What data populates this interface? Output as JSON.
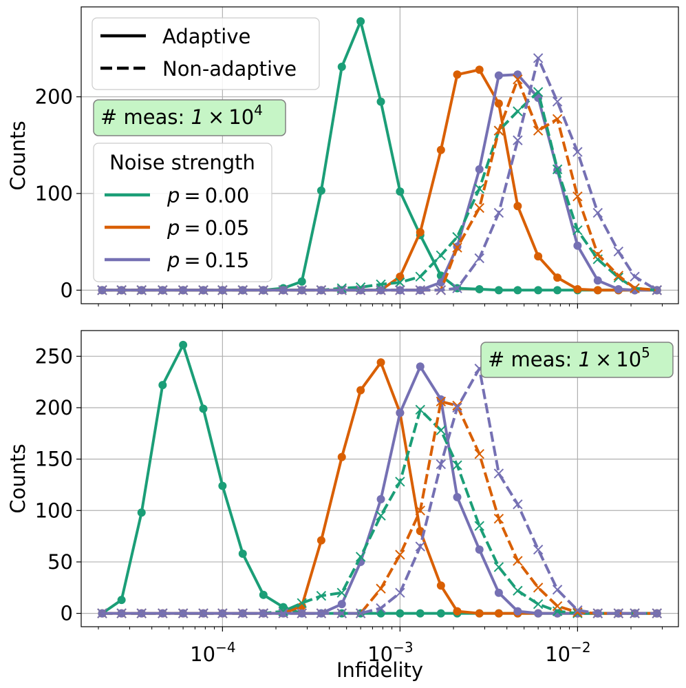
{
  "colors": {
    "p000": "#1b9e77",
    "p005": "#d95f02",
    "p015": "#7570b3",
    "grid": "#b0b0b0",
    "box_fill": "#c6f5c6"
  },
  "x_tick_labels": [
    {
      "base": "10",
      "exp": "−4"
    },
    {
      "base": "10",
      "exp": "−3"
    },
    {
      "base": "10",
      "exp": "−2"
    }
  ],
  "chart_data": [
    {
      "type": "line",
      "panel": "top",
      "xscale": "log",
      "xlim": [
        1.6e-05,
        0.037
      ],
      "ylim": [
        -14,
        293
      ],
      "ylabel": "Counts",
      "xlabel": "",
      "yticks": [
        0,
        100,
        200
      ],
      "annotation": {
        "prefix": "# meas: ",
        "mant": "1",
        "times": "×",
        "base": "10",
        "exp": "4"
      },
      "legend_style": {
        "title": "",
        "entries": [
          {
            "label": "Adaptive",
            "dash": "solid"
          },
          {
            "label": "Non-adaptive",
            "dash": "dashed"
          }
        ]
      },
      "legend_noise": {
        "title": "Noise strength",
        "entries": [
          {
            "label": "p = 0.00",
            "var": "p",
            "val": "0.00",
            "series": "p000"
          },
          {
            "label": "p = 0.05",
            "var": "p",
            "val": "0.05",
            "series": "p005"
          },
          {
            "label": "p = 0.15",
            "var": "p",
            "val": "0.15",
            "series": "p015"
          }
        ]
      },
      "x": [
        2.1e-05,
        2.7e-05,
        3.5e-05,
        4.6e-05,
        6e-05,
        7.8e-05,
        0.0001,
        0.00013,
        0.00017,
        0.00022,
        0.00028,
        0.00036,
        0.00047,
        0.0006,
        0.00078,
        0.001,
        0.0013,
        0.0017,
        0.0021,
        0.0028,
        0.0036,
        0.0046,
        0.006,
        0.0077,
        0.01,
        0.013,
        0.017,
        0.021,
        0.028
      ],
      "series": [
        {
          "name": "p = 0.00 Adaptive",
          "key": "p000",
          "style": "solid",
          "marker": "circle",
          "values": [
            0,
            0,
            0,
            0,
            0,
            0,
            0,
            0,
            0,
            2,
            9,
            103,
            231,
            278,
            195,
            102,
            57,
            15,
            2,
            1,
            0,
            0,
            0,
            0,
            0,
            0,
            0,
            0,
            0
          ]
        },
        {
          "name": "p = 0.05 Adaptive",
          "key": "p005",
          "style": "solid",
          "marker": "circle",
          "values": [
            0,
            0,
            0,
            0,
            0,
            0,
            0,
            0,
            0,
            0,
            0,
            0,
            0,
            0,
            0,
            14,
            60,
            145,
            223,
            228,
            193,
            87,
            35,
            13,
            1,
            0,
            0,
            0,
            0
          ]
        },
        {
          "name": "p = 0.15 Adaptive",
          "key": "p015",
          "style": "solid",
          "marker": "circle",
          "values": [
            0,
            0,
            0,
            0,
            0,
            0,
            0,
            0,
            0,
            0,
            0,
            0,
            0,
            0,
            0,
            0,
            0,
            8,
            45,
            125,
            222,
            223,
            199,
            124,
            46,
            10,
            1,
            0,
            0
          ]
        },
        {
          "name": "p = 0.00 Non-adaptive",
          "key": "p000",
          "style": "dashed",
          "marker": "x",
          "values": [
            0,
            0,
            0,
            0,
            0,
            0,
            0,
            0,
            0,
            0,
            0,
            0,
            2,
            3,
            6,
            8,
            14,
            36,
            55,
            105,
            165,
            185,
            205,
            125,
            62,
            32,
            13,
            2,
            0
          ]
        },
        {
          "name": "p = 0.05 Non-adaptive",
          "key": "p005",
          "style": "dashed",
          "marker": "x",
          "values": [
            0,
            0,
            0,
            0,
            0,
            0,
            0,
            0,
            0,
            0,
            0,
            0,
            0,
            0,
            0,
            0,
            0,
            0,
            44,
            85,
            165,
            218,
            165,
            177,
            97,
            37,
            15,
            2,
            0
          ]
        },
        {
          "name": "p = 0.15 Non-adaptive",
          "key": "p015",
          "style": "dashed",
          "marker": "x",
          "values": [
            0,
            0,
            0,
            0,
            0,
            0,
            0,
            0,
            0,
            0,
            0,
            0,
            0,
            0,
            0,
            0,
            0,
            0,
            2,
            33,
            80,
            155,
            240,
            195,
            143,
            80,
            40,
            14,
            0
          ]
        }
      ]
    },
    {
      "type": "line",
      "panel": "bottom",
      "xscale": "log",
      "xlim": [
        1.6e-05,
        0.037
      ],
      "ylim": [
        -13,
        275
      ],
      "ylabel": "Counts",
      "xlabel": "Infidelity",
      "yticks": [
        0,
        50,
        100,
        150,
        200,
        250
      ],
      "annotation": {
        "prefix": "# meas: ",
        "mant": "1",
        "times": "×",
        "base": "10",
        "exp": "5"
      },
      "x": [
        2.1e-05,
        2.7e-05,
        3.5e-05,
        4.6e-05,
        6e-05,
        7.8e-05,
        0.0001,
        0.00013,
        0.00017,
        0.00022,
        0.00028,
        0.00036,
        0.00047,
        0.0006,
        0.00078,
        0.001,
        0.0013,
        0.0017,
        0.0021,
        0.0028,
        0.0036,
        0.0046,
        0.006,
        0.0077,
        0.01,
        0.013,
        0.017,
        0.021,
        0.028
      ],
      "series": [
        {
          "name": "p = 0.00 Adaptive",
          "key": "p000",
          "style": "solid",
          "marker": "circle",
          "values": [
            0,
            13,
            98,
            222,
            261,
            199,
            124,
            58,
            18,
            6,
            0,
            0,
            0,
            0,
            0,
            0,
            0,
            0,
            0,
            0,
            0,
            0,
            0,
            0,
            0,
            0,
            0,
            0,
            0
          ]
        },
        {
          "name": "p = 0.05 Adaptive",
          "key": "p005",
          "style": "solid",
          "marker": "circle",
          "values": [
            0,
            0,
            0,
            0,
            0,
            0,
            0,
            0,
            0,
            0,
            7,
            71,
            152,
            217,
            244,
            195,
            80,
            27,
            2,
            0,
            0,
            0,
            0,
            0,
            0,
            0,
            0,
            0,
            0
          ]
        },
        {
          "name": "p = 0.15 Adaptive",
          "key": "p015",
          "style": "solid",
          "marker": "circle",
          "values": [
            0,
            0,
            0,
            0,
            0,
            0,
            0,
            0,
            0,
            0,
            0,
            0,
            9,
            50,
            111,
            195,
            240,
            208,
            113,
            62,
            20,
            2,
            0,
            0,
            0,
            0,
            0,
            0,
            0
          ]
        },
        {
          "name": "p = 0.00 Non-adaptive",
          "key": "p000",
          "style": "dashed",
          "marker": "x",
          "values": [
            0,
            0,
            0,
            0,
            0,
            0,
            0,
            0,
            0,
            2,
            10,
            17,
            20,
            55,
            95,
            128,
            198,
            178,
            144,
            85,
            45,
            22,
            9,
            2,
            0,
            0,
            0,
            0,
            0
          ]
        },
        {
          "name": "p = 0.05 Non-adaptive",
          "key": "p005",
          "style": "dashed",
          "marker": "x",
          "values": [
            0,
            0,
            0,
            0,
            0,
            0,
            0,
            0,
            0,
            0,
            0,
            0,
            0,
            0,
            24,
            57,
            100,
            206,
            202,
            155,
            92,
            51,
            25,
            7,
            1,
            0,
            0,
            0,
            0
          ]
        },
        {
          "name": "p = 0.15 Non-adaptive",
          "key": "p015",
          "style": "dashed",
          "marker": "x",
          "values": [
            0,
            0,
            0,
            0,
            0,
            0,
            0,
            0,
            0,
            0,
            0,
            0,
            0,
            0,
            5,
            20,
            65,
            145,
            200,
            238,
            136,
            106,
            62,
            23,
            3,
            0,
            0,
            0,
            0
          ]
        }
      ]
    }
  ]
}
